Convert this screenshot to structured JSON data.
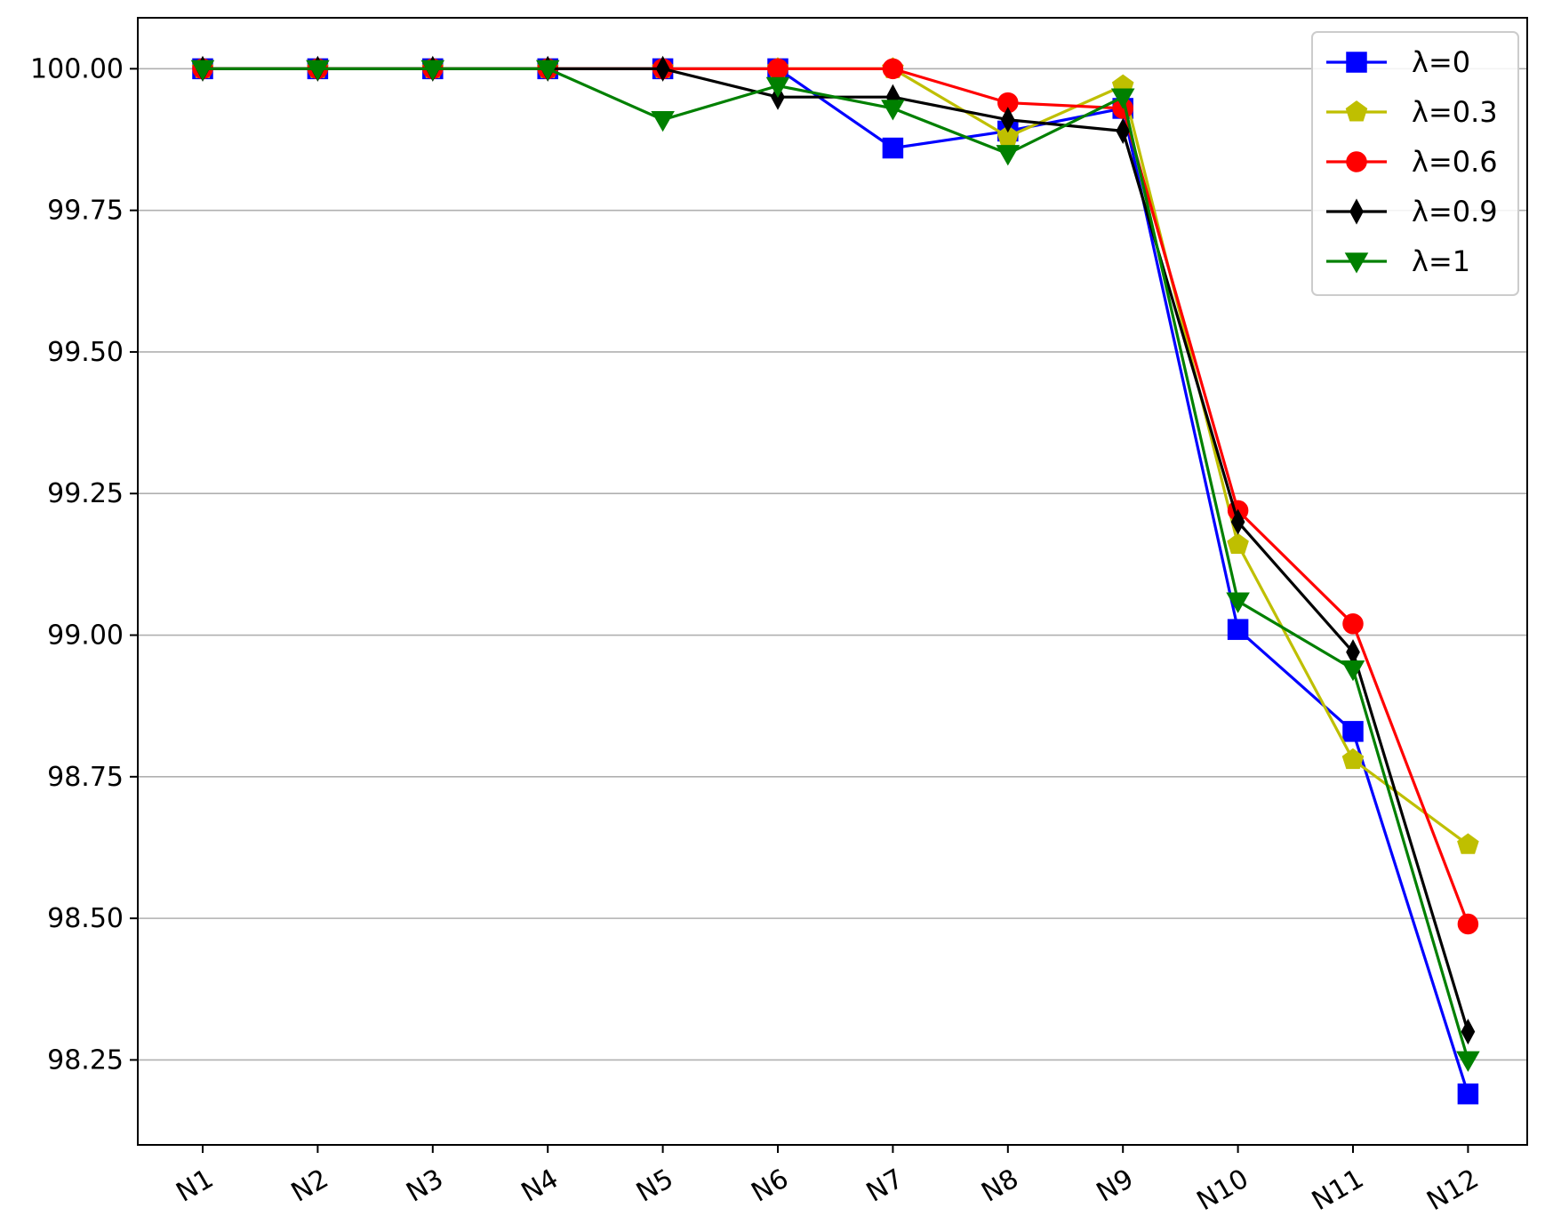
{
  "chart_data": {
    "type": "line",
    "title": "",
    "xlabel": "",
    "ylabel": "",
    "categories": [
      "N1",
      "N2",
      "N3",
      "N4",
      "N5",
      "N6",
      "N7",
      "N8",
      "N9",
      "N10",
      "N11",
      "N12"
    ],
    "ylim": [
      98.1,
      100.09
    ],
    "yticks": [
      98.25,
      98.5,
      98.75,
      99.0,
      99.25,
      99.5,
      99.75,
      100.0
    ],
    "ytick_labels": [
      "98.25",
      "98.50",
      "98.75",
      "99.00",
      "99.25",
      "99.50",
      "99.75",
      "100.00"
    ],
    "grid": "horizontal",
    "legend_position": "top-right",
    "series": [
      {
        "name": "λ=0",
        "color": "#0000ff",
        "marker": "square",
        "values": [
          100.0,
          100.0,
          100.0,
          100.0,
          100.0,
          100.0,
          99.86,
          99.89,
          99.93,
          99.01,
          98.83,
          98.19
        ]
      },
      {
        "name": "λ=0.3",
        "color": "#bfbf00",
        "marker": "pentagon",
        "values": [
          100.0,
          100.0,
          100.0,
          100.0,
          100.0,
          100.0,
          100.0,
          99.88,
          99.97,
          99.16,
          98.78,
          98.63
        ]
      },
      {
        "name": "λ=0.6",
        "color": "#ff0000",
        "marker": "circle",
        "values": [
          100.0,
          100.0,
          100.0,
          100.0,
          100.0,
          100.0,
          100.0,
          99.94,
          99.93,
          99.22,
          99.02,
          98.49
        ]
      },
      {
        "name": "λ=0.9",
        "color": "#000000",
        "marker": "thin-diamond",
        "values": [
          100.0,
          100.0,
          100.0,
          100.0,
          100.0,
          99.95,
          99.95,
          99.91,
          99.89,
          99.2,
          98.97,
          98.3
        ]
      },
      {
        "name": "λ=1",
        "color": "#008000",
        "marker": "triangle-down",
        "values": [
          100.0,
          100.0,
          100.0,
          100.0,
          99.91,
          99.97,
          99.93,
          99.85,
          99.95,
          99.06,
          98.94,
          98.25
        ]
      }
    ]
  }
}
